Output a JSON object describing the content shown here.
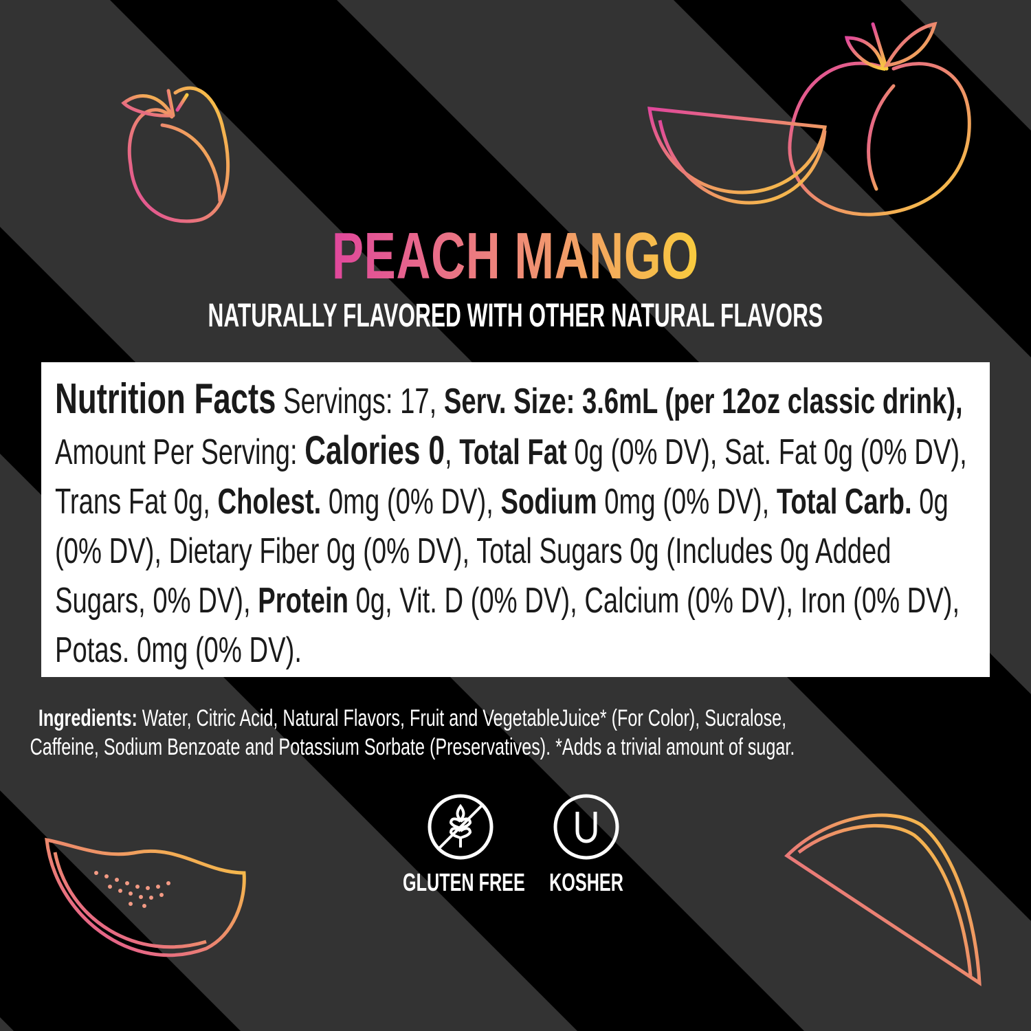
{
  "colors": {
    "background": "#333333",
    "stripe": "#000000",
    "gradient_start": "#e0479c",
    "gradient_end": "#f9cc3e",
    "panel": "#ffffff"
  },
  "title": "PEACH MANGO",
  "subtitle": "NATURALLY FLAVORED WITH OTHER NATURAL FLAVORS",
  "nutrition": [
    {
      "text": "Nutrition Facts",
      "style": "h"
    },
    {
      "text": " Servings: 17, ",
      "style": ""
    },
    {
      "text": "Serv. Size: 3.6mL (per 12oz classic drink),",
      "style": "b"
    },
    {
      "text": " Amount Per Serving: ",
      "style": ""
    },
    {
      "text": "Calories 0",
      "style": "c"
    },
    {
      "text": ", ",
      "style": ""
    },
    {
      "text": "Total Fat",
      "style": "b"
    },
    {
      "text": " 0g (0% DV), Sat. Fat 0g (0% DV), Trans Fat 0g, ",
      "style": ""
    },
    {
      "text": "Cholest.",
      "style": "b"
    },
    {
      "text": " 0mg (0% DV), ",
      "style": ""
    },
    {
      "text": "Sodium",
      "style": "b"
    },
    {
      "text": " 0mg (0% DV), ",
      "style": ""
    },
    {
      "text": "Total Carb.",
      "style": "b"
    },
    {
      "text": " 0g (0% DV), Dietary Fiber 0g (0% DV), Total Sugars 0g (Includes 0g Added Sugars, 0% DV), ",
      "style": ""
    },
    {
      "text": "Protein",
      "style": "b"
    },
    {
      "text": " 0g, Vit. D (0% DV), Calcium (0% DV), Iron (0% DV), Potas. 0mg (0% DV).",
      "style": ""
    }
  ],
  "ingredients": {
    "label": "Ingredients:",
    "text": " Water, Citric Acid, Natural Flavors, Fruit and VegetableJuice* (For Color), Sucralose, Caffeine, Sodium Benzoate and Potassium Sorbate (Preservatives). *Adds a trivial amount of sugar."
  },
  "badges": [
    {
      "label": "GLUTEN FREE",
      "icon": "gluten-free-icon"
    },
    {
      "label": "KOSHER",
      "icon": "kosher-icon"
    }
  ]
}
